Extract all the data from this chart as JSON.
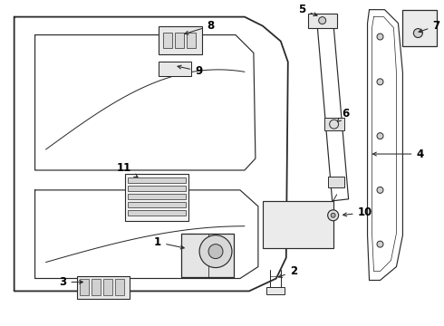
{
  "bg_color": "#ffffff",
  "line_color": "#2a2a2a",
  "label_color": "#000000",
  "figsize": [
    4.9,
    3.6
  ],
  "dpi": 100,
  "lw_main": 1.3,
  "lw_thin": 0.85,
  "lw_part": 0.75,
  "label_fs": 8.5
}
